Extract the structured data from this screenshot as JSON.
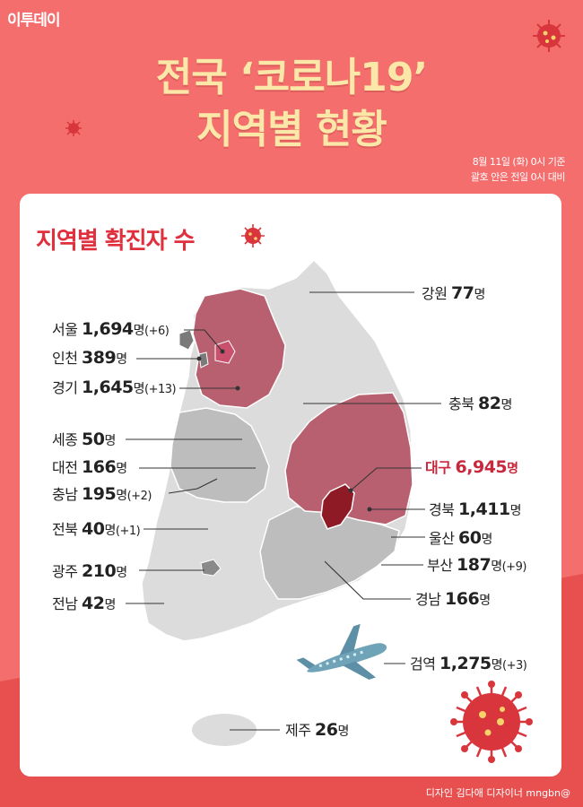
{
  "header": {
    "logo": "이투데이",
    "title_line1": "전국 ‘코로나19’",
    "title_line2": "지역별 현황",
    "basis_line1": "8월 11일 (화) 0시 기준",
    "basis_line2": "괄호 안은 전일 0시 대비"
  },
  "card": {
    "title": "지역별 확진자 수"
  },
  "regions": [
    {
      "name": "강원",
      "count": "77",
      "unit": "명",
      "change": "",
      "count_value": 77
    },
    {
      "name": "서울",
      "count": "1,694",
      "unit": "명",
      "change": "(+6)",
      "count_value": 1694
    },
    {
      "name": "인천",
      "count": "389",
      "unit": "명",
      "change": "",
      "count_value": 389
    },
    {
      "name": "경기",
      "count": "1,645",
      "unit": "명",
      "change": "(+13)",
      "count_value": 1645
    },
    {
      "name": "충북",
      "count": "82",
      "unit": "명",
      "change": "",
      "count_value": 82
    },
    {
      "name": "세종",
      "count": "50",
      "unit": "명",
      "change": "",
      "count_value": 50
    },
    {
      "name": "대전",
      "count": "166",
      "unit": "명",
      "change": "",
      "count_value": 166
    },
    {
      "name": "대구",
      "count": "6,945",
      "unit": "명",
      "change": "",
      "count_value": 6945
    },
    {
      "name": "충남",
      "count": "195",
      "unit": "명",
      "change": "(+2)",
      "count_value": 195
    },
    {
      "name": "경북",
      "count": "1,411",
      "unit": "명",
      "change": "",
      "count_value": 1411
    },
    {
      "name": "전북",
      "count": "40",
      "unit": "명",
      "change": "(+1)",
      "count_value": 40
    },
    {
      "name": "울산",
      "count": "60",
      "unit": "명",
      "change": "",
      "count_value": 60
    },
    {
      "name": "부산",
      "count": "187",
      "unit": "명",
      "change": "(+9)",
      "count_value": 187
    },
    {
      "name": "광주",
      "count": "210",
      "unit": "명",
      "change": "",
      "count_value": 210
    },
    {
      "name": "경남",
      "count": "166",
      "unit": "명",
      "change": "",
      "count_value": 166
    },
    {
      "name": "전남",
      "count": "42",
      "unit": "명",
      "change": "",
      "count_value": 42
    },
    {
      "name": "검역",
      "count": "1,275",
      "unit": "명",
      "change": "(+3)",
      "count_value": 1275
    },
    {
      "name": "제주",
      "count": "26",
      "unit": "명",
      "change": "",
      "count_value": 26
    }
  ],
  "footer": {
    "credit": "디자인 김다애 디자이너 mngbn@"
  },
  "colors": {
    "background": "#f46e6e",
    "title": "#fbe7a8",
    "accent": "#e0303e",
    "map_gray": "#d9d9d9",
    "map_mid": "#b8b8b8",
    "map_red": "#b96070",
    "map_daegu": "#8e1a26"
  },
  "icons": [
    "virus-icon",
    "airplane-icon"
  ]
}
